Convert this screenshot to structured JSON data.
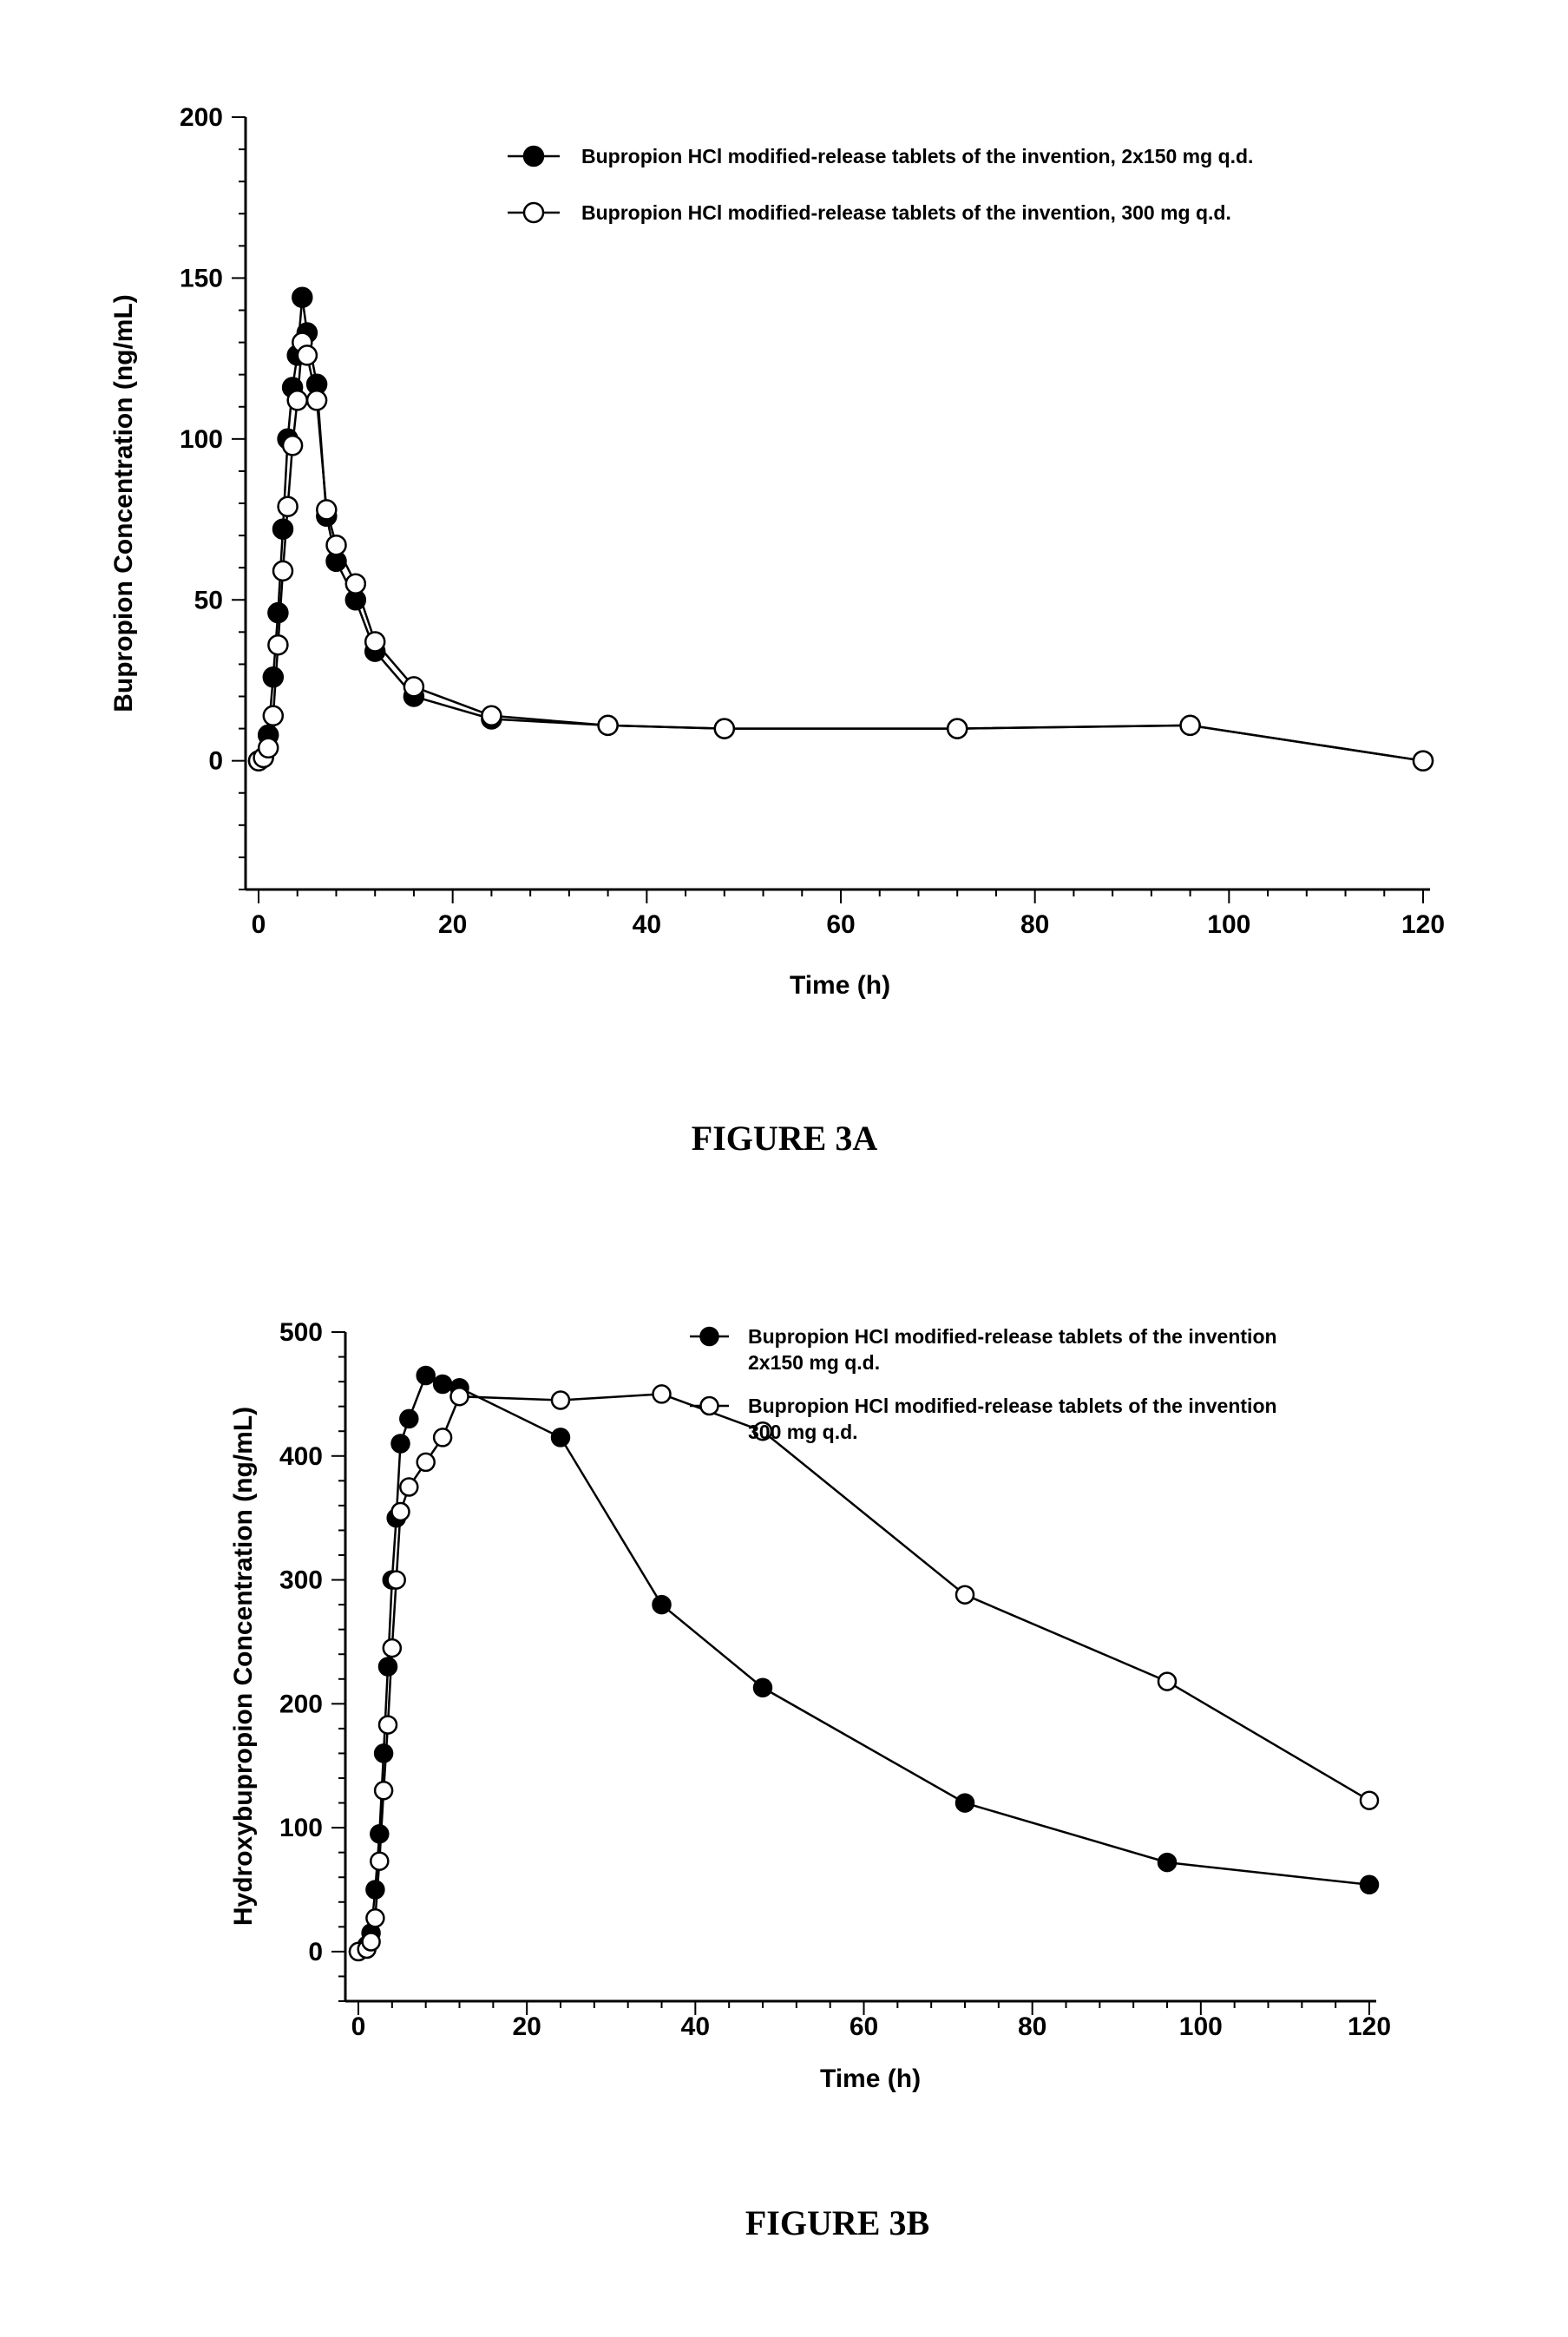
{
  "chart_data": [
    {
      "type": "line",
      "caption": "FIGURE 3A",
      "xlabel": "Time (h)",
      "ylabel": "Bupropion Concentration (ng/mL)",
      "xlim": [
        0,
        120
      ],
      "ylim": [
        -40,
        200
      ],
      "xticks": [
        0,
        20,
        40,
        60,
        80,
        100,
        120
      ],
      "yticks": [
        0,
        50,
        100,
        150,
        200
      ],
      "grid": false,
      "legend_placement": "top-right",
      "series": [
        {
          "name": "Bupropion HCl modified-release tablets of the invention, 2x150 mg q.d.",
          "marker": "filled-circle",
          "x": [
            0,
            0.5,
            1,
            1.5,
            2,
            2.5,
            3,
            3.5,
            4,
            4.5,
            5,
            6,
            7,
            8,
            10,
            12,
            16,
            24,
            36,
            48,
            72,
            96,
            120
          ],
          "y": [
            0,
            1,
            8,
            26,
            46,
            72,
            100,
            116,
            126,
            144,
            133,
            117,
            76,
            62,
            50,
            34,
            20,
            13,
            11,
            10,
            10,
            11,
            0
          ]
        },
        {
          "name": "Bupropion HCl modified-release tablets of the invention, 300 mg q.d.",
          "marker": "open-circle",
          "x": [
            0,
            0.5,
            1,
            1.5,
            2,
            2.5,
            3,
            3.5,
            4,
            4.5,
            5,
            6,
            7,
            8,
            10,
            12,
            16,
            24,
            36,
            48,
            72,
            96,
            120
          ],
          "y": [
            0,
            1,
            4,
            14,
            36,
            59,
            79,
            98,
            112,
            130,
            126,
            112,
            78,
            67,
            55,
            37,
            23,
            14,
            11,
            10,
            10,
            11,
            0
          ]
        }
      ]
    },
    {
      "type": "line",
      "caption": "FIGURE 3B",
      "xlabel": "Time (h)",
      "ylabel": "Hydroxybupropion Concentration (ng/mL)",
      "xlim": [
        0,
        120
      ],
      "ylim": [
        -40,
        500
      ],
      "xticks": [
        0,
        20,
        40,
        60,
        80,
        100,
        120
      ],
      "yticks": [
        0,
        100,
        200,
        300,
        400,
        500
      ],
      "grid": false,
      "legend_placement": "top-right",
      "series": [
        {
          "name": "Bupropion HCl modified-release tablets of the invention 2x150 mg q.d.",
          "marker": "filled-circle",
          "x": [
            0,
            1,
            1.5,
            2,
            2.5,
            3,
            3.5,
            4,
            4.5,
            5,
            6,
            8,
            10,
            12,
            24,
            36,
            48,
            72,
            96,
            120
          ],
          "y": [
            0,
            5,
            15,
            50,
            95,
            160,
            230,
            300,
            350,
            410,
            430,
            465,
            458,
            455,
            415,
            280,
            213,
            120,
            72,
            54
          ]
        },
        {
          "name": "Bupropion HCl modified-release tablets of the invention 300 mg q.d.",
          "marker": "open-circle",
          "x": [
            0,
            1,
            1.5,
            2,
            2.5,
            3,
            3.5,
            4,
            4.5,
            5,
            6,
            8,
            10,
            12,
            24,
            36,
            48,
            72,
            96,
            120
          ],
          "y": [
            0,
            2,
            8,
            27,
            73,
            130,
            183,
            245,
            300,
            355,
            375,
            395,
            415,
            448,
            445,
            450,
            420,
            288,
            218,
            122
          ]
        }
      ]
    }
  ],
  "page": {
    "captions": [
      "FIGURE 3A",
      "FIGURE 3B"
    ]
  }
}
